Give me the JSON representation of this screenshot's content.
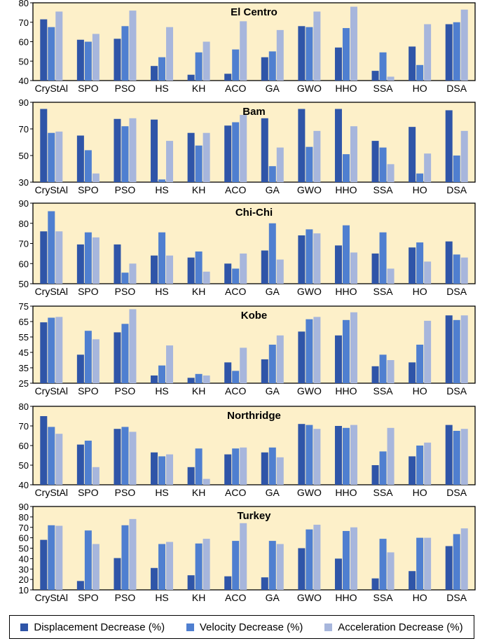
{
  "figure": {
    "legend_entries": [
      "Displacement Decrease (%)",
      "Velocity Decrease (%)",
      "Acceleration Decrease (%)"
    ],
    "colors": {
      "panel_bg": "#fdf0c9",
      "series": [
        "#2f55a8",
        "#4f7fd0",
        "#a7b6dc"
      ],
      "axis": "#000000"
    }
  },
  "chart_data": [
    {
      "type": "bar",
      "title": "El Centro",
      "categories": [
        "CryStAl",
        "SPO",
        "PSO",
        "HS",
        "KH",
        "ACO",
        "GA",
        "GWO",
        "HHO",
        "SSA",
        "HO",
        "DSA"
      ],
      "ylim": [
        40,
        80
      ],
      "yticks": [
        40,
        50,
        60,
        70,
        80
      ],
      "series": [
        {
          "name": "Displacement Decrease (%)",
          "values": [
            71.5,
            61,
            61.5,
            47.5,
            43,
            43.5,
            52,
            68,
            57,
            45,
            57.5,
            69
          ]
        },
        {
          "name": "Velocity Decrease (%)",
          "values": [
            67.5,
            60,
            68,
            52,
            54.5,
            56,
            55,
            67.5,
            67,
            54.5,
            48,
            70
          ]
        },
        {
          "name": "Acceleration Decrease (%)",
          "values": [
            75.5,
            64,
            76,
            67.5,
            60,
            70.5,
            66,
            75.5,
            78,
            42,
            69,
            76.5
          ]
        }
      ]
    },
    {
      "type": "bar",
      "title": "Bam",
      "categories": [
        "CryStAl",
        "SPO",
        "PSO",
        "HS",
        "KH",
        "ACO",
        "GA",
        "GWO",
        "HHO",
        "SSA",
        "HO",
        "DSA"
      ],
      "ylim": [
        30,
        90
      ],
      "yticks": [
        30,
        50,
        70,
        90
      ],
      "series": [
        {
          "name": "Displacement Decrease (%)",
          "values": [
            85,
            65,
            77.5,
            77,
            67,
            72.5,
            78,
            85,
            85,
            61,
            71.5,
            84
          ]
        },
        {
          "name": "Velocity Decrease (%)",
          "values": [
            67,
            54,
            72,
            32,
            57.5,
            75,
            42,
            56.5,
            51,
            56,
            36.5,
            50
          ]
        },
        {
          "name": "Acceleration Decrease (%)",
          "values": [
            68,
            36.5,
            78,
            61,
            67,
            80.5,
            56,
            68.5,
            72,
            43.5,
            51.5,
            68.5
          ]
        }
      ]
    },
    {
      "type": "bar",
      "title": "Chi-Chi",
      "categories": [
        "CryStAl",
        "SPO",
        "PSO",
        "HS",
        "KH",
        "ACO",
        "GA",
        "GWO",
        "HHO",
        "SSA",
        "HO",
        "DSA"
      ],
      "ylim": [
        50,
        90
      ],
      "yticks": [
        50,
        60,
        70,
        80,
        90
      ],
      "series": [
        {
          "name": "Displacement Decrease (%)",
          "values": [
            76,
            69.5,
            69.5,
            64,
            63,
            60,
            66.5,
            74,
            69,
            65,
            68,
            71
          ]
        },
        {
          "name": "Velocity Decrease (%)",
          "values": [
            86,
            75.5,
            55.5,
            75.5,
            66,
            57.5,
            80,
            77,
            79,
            75.5,
            70.5,
            64.5
          ]
        },
        {
          "name": "Acceleration Decrease (%)",
          "values": [
            76,
            73,
            60,
            64,
            56,
            65,
            62,
            75,
            65.5,
            57.5,
            61,
            63
          ]
        }
      ]
    },
    {
      "type": "bar",
      "title": "Kobe",
      "categories": [
        "CryStAl",
        "SPO",
        "PSO",
        "HS",
        "KH",
        "ACO",
        "GA",
        "GWO",
        "HHO",
        "SSA",
        "HO",
        "DSA"
      ],
      "ylim": [
        25,
        75
      ],
      "yticks": [
        25,
        35,
        45,
        55,
        65,
        75
      ],
      "series": [
        {
          "name": "Displacement Decrease (%)",
          "values": [
            64.5,
            43.5,
            58,
            30,
            28.5,
            38.5,
            40.5,
            58.5,
            56,
            36,
            38.5,
            69
          ]
        },
        {
          "name": "Velocity Decrease (%)",
          "values": [
            67.5,
            59,
            63.5,
            36.5,
            31,
            33,
            50,
            66.5,
            66,
            43.5,
            50,
            66
          ]
        },
        {
          "name": "Acceleration Decrease (%)",
          "values": [
            68,
            53.5,
            73,
            49.5,
            30,
            48,
            56,
            68,
            71,
            40,
            65.5,
            69
          ]
        }
      ]
    },
    {
      "type": "bar",
      "title": "Northridge",
      "categories": [
        "CryStAl",
        "SPO",
        "PSO",
        "HS",
        "KH",
        "ACO",
        "GA",
        "GWO",
        "HHO",
        "SSA",
        "HO",
        "DSA"
      ],
      "ylim": [
        40,
        80
      ],
      "yticks": [
        40,
        50,
        60,
        70,
        80
      ],
      "series": [
        {
          "name": "Displacement Decrease (%)",
          "values": [
            75,
            60.5,
            68.5,
            56.5,
            49,
            55.5,
            56.5,
            71,
            70,
            50,
            54.5,
            70.5
          ]
        },
        {
          "name": "Velocity Decrease (%)",
          "values": [
            69.5,
            62.5,
            69.5,
            54.5,
            58.5,
            58.5,
            59,
            70.5,
            69,
            57,
            60,
            67.5
          ]
        },
        {
          "name": "Acceleration Decrease (%)",
          "values": [
            66,
            49,
            67,
            55.5,
            43,
            59,
            54,
            68.5,
            70.5,
            69,
            61.5,
            68.5
          ]
        }
      ]
    },
    {
      "type": "bar",
      "title": "Turkey",
      "categories": [
        "CryStAl",
        "SPO",
        "PSO",
        "HS",
        "KH",
        "ACO",
        "GA",
        "GWO",
        "HHO",
        "SSA",
        "HO",
        "DSA"
      ],
      "ylim": [
        10,
        90
      ],
      "yticks": [
        10,
        20,
        30,
        40,
        50,
        60,
        70,
        80,
        90
      ],
      "series": [
        {
          "name": "Displacement Decrease (%)",
          "values": [
            58,
            18.5,
            40.5,
            31,
            24,
            23,
            22,
            50,
            40,
            21,
            28,
            52
          ]
        },
        {
          "name": "Velocity Decrease (%)",
          "values": [
            72,
            67,
            72,
            54,
            54.5,
            57,
            57,
            68,
            66.5,
            59,
            60,
            63.5
          ]
        },
        {
          "name": "Acceleration Decrease (%)",
          "values": [
            71.5,
            54,
            78,
            56,
            59,
            74,
            54,
            72.5,
            70,
            46,
            60,
            69
          ]
        }
      ]
    }
  ]
}
